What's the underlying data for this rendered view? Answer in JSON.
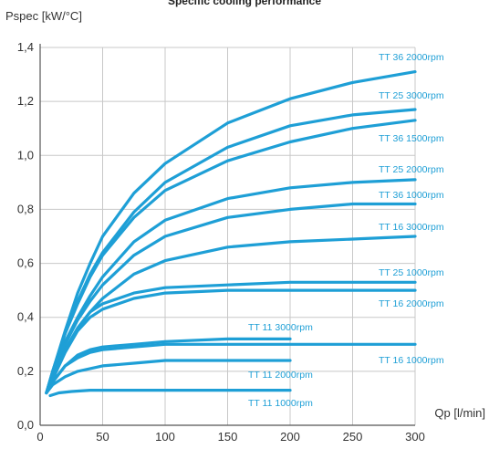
{
  "chart_data": {
    "type": "line",
    "title": "Specific cooling performance",
    "ylabel": "Pspec [kW/°C]",
    "xlabel": "Qp [l/min]",
    "xlim": [
      0,
      300
    ],
    "ylim": [
      0,
      1.4
    ],
    "x_ticks": [
      "0",
      "50",
      "100",
      "150",
      "200",
      "250",
      "300"
    ],
    "y_ticks": [
      "0,0",
      "0,2",
      "0,4",
      "0,6",
      "0,8",
      "1,0",
      "1,2",
      "1,4"
    ],
    "grid": true,
    "line_color": "#1e9fd6",
    "series": [
      {
        "name": "TT 36 2000rpm",
        "x": [
          5,
          10,
          20,
          30,
          40,
          50,
          75,
          100,
          150,
          200,
          250,
          300
        ],
        "y": [
          0.12,
          0.2,
          0.35,
          0.49,
          0.6,
          0.7,
          0.86,
          0.97,
          1.12,
          1.21,
          1.27,
          1.31
        ]
      },
      {
        "name": "TT 25 3000rpm",
        "x": [
          5,
          10,
          20,
          30,
          40,
          50,
          75,
          100,
          150,
          200,
          250,
          300
        ],
        "y": [
          0.12,
          0.2,
          0.34,
          0.46,
          0.56,
          0.64,
          0.79,
          0.9,
          1.03,
          1.11,
          1.15,
          1.17
        ]
      },
      {
        "name": "TT 36 1500rpm",
        "x": [
          5,
          10,
          20,
          30,
          40,
          50,
          75,
          100,
          150,
          200,
          250,
          300
        ],
        "y": [
          0.12,
          0.2,
          0.34,
          0.45,
          0.55,
          0.63,
          0.77,
          0.87,
          0.98,
          1.05,
          1.1,
          1.13
        ]
      },
      {
        "name": "TT 25 2000rpm",
        "x": [
          5,
          10,
          20,
          30,
          40,
          50,
          75,
          100,
          150,
          200,
          250,
          300
        ],
        "y": [
          0.12,
          0.19,
          0.31,
          0.4,
          0.48,
          0.55,
          0.68,
          0.76,
          0.84,
          0.88,
          0.9,
          0.91
        ]
      },
      {
        "name": "TT 36 1000rpm",
        "x": [
          5,
          10,
          20,
          30,
          40,
          50,
          75,
          100,
          150,
          200,
          250,
          300
        ],
        "y": [
          0.12,
          0.19,
          0.3,
          0.39,
          0.46,
          0.52,
          0.63,
          0.7,
          0.77,
          0.8,
          0.82,
          0.82
        ]
      },
      {
        "name": "TT 16 3000rpm",
        "x": [
          5,
          10,
          20,
          30,
          40,
          50,
          75,
          100,
          150,
          200,
          250,
          300
        ],
        "y": [
          0.12,
          0.18,
          0.28,
          0.36,
          0.42,
          0.47,
          0.56,
          0.61,
          0.66,
          0.68,
          0.69,
          0.7
        ]
      },
      {
        "name": "TT 25 1000rpm",
        "x": [
          5,
          10,
          20,
          30,
          40,
          50,
          75,
          100,
          150,
          200,
          250,
          300
        ],
        "y": [
          0.12,
          0.17,
          0.28,
          0.36,
          0.42,
          0.45,
          0.49,
          0.51,
          0.52,
          0.53,
          0.53,
          0.53
        ]
      },
      {
        "name": "TT 16 2000rpm",
        "x": [
          5,
          10,
          20,
          30,
          40,
          50,
          75,
          100,
          150,
          200,
          250,
          300
        ],
        "y": [
          0.12,
          0.17,
          0.27,
          0.35,
          0.4,
          0.43,
          0.47,
          0.49,
          0.5,
          0.5,
          0.5,
          0.5
        ]
      },
      {
        "name": "TT 11 3000rpm",
        "x": [
          5,
          10,
          20,
          30,
          40,
          50,
          75,
          100,
          150,
          200
        ],
        "y": [
          0.12,
          0.16,
          0.22,
          0.26,
          0.28,
          0.29,
          0.3,
          0.31,
          0.32,
          0.32
        ]
      },
      {
        "name": "TT 16 1000rpm",
        "x": [
          5,
          10,
          20,
          30,
          40,
          50,
          75,
          100,
          150,
          200,
          250,
          300
        ],
        "y": [
          0.12,
          0.16,
          0.22,
          0.25,
          0.27,
          0.28,
          0.29,
          0.3,
          0.3,
          0.3,
          0.3,
          0.3
        ]
      },
      {
        "name": "TT 11 2000rpm",
        "x": [
          5,
          10,
          20,
          30,
          40,
          50,
          75,
          100,
          150,
          200
        ],
        "y": [
          0.12,
          0.15,
          0.18,
          0.2,
          0.21,
          0.22,
          0.23,
          0.24,
          0.24,
          0.24
        ]
      },
      {
        "name": "TT 11 1000rpm",
        "x": [
          8,
          15,
          25,
          40,
          60,
          100,
          150,
          200
        ],
        "y": [
          0.11,
          0.12,
          0.125,
          0.13,
          0.13,
          0.13,
          0.13,
          0.13
        ]
      }
    ]
  }
}
